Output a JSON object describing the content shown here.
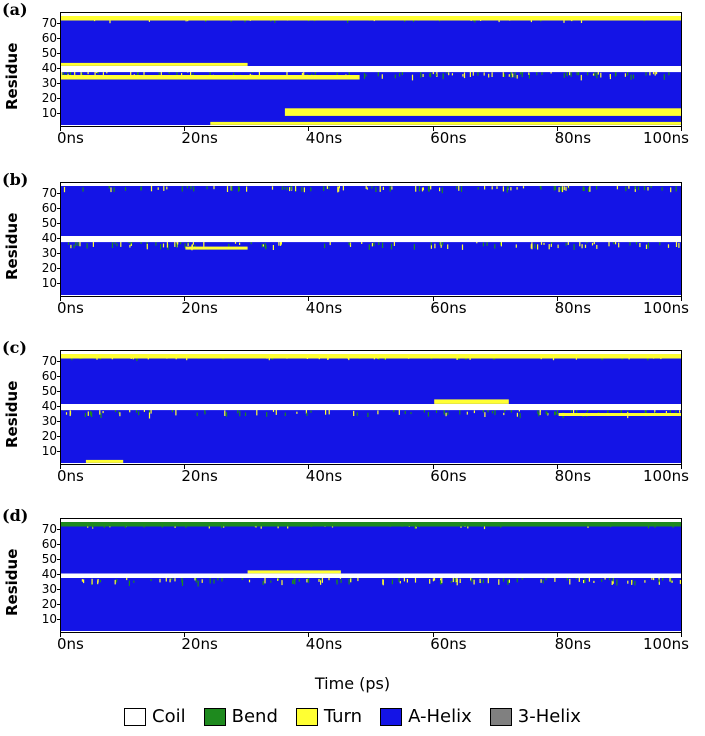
{
  "chart_data": {
    "type": "heatmap",
    "xlabel": "Time (ps)",
    "ylabel": "Residue",
    "x_ticks": [
      "0ns",
      "20ns",
      "40ns",
      "60ns",
      "80ns",
      "100ns"
    ],
    "x_range_ns": [
      0,
      100
    ],
    "y_ticks": [
      10,
      20,
      30,
      40,
      50,
      60,
      70
    ],
    "y_range": [
      1,
      76
    ],
    "legend_placement": "bottom",
    "states": [
      {
        "name": "Coil",
        "color": "#ffffff"
      },
      {
        "name": "Bend",
        "color": "#1e8a1e"
      },
      {
        "name": "Turn",
        "color": "#ffff33"
      },
      {
        "name": "A-Helix",
        "color": "#1414e6"
      },
      {
        "name": "3-Helix",
        "color": "#808080"
      }
    ],
    "panels": [
      {
        "letter": "(a)",
        "bands": [
          {
            "state": "Coil",
            "from_res": 1,
            "to_res": 2,
            "t_start": 0,
            "t_end": 100
          },
          {
            "state": "Turn",
            "from_res": 3,
            "to_res": 4,
            "t_start": 24,
            "t_end": 100
          },
          {
            "state": "Turn",
            "from_res": 9,
            "to_res": 13,
            "t_start": 36,
            "t_end": 100
          },
          {
            "state": "Turn",
            "from_res": 33,
            "to_res": 35,
            "t_start": 0,
            "t_end": 48
          },
          {
            "state": "Coil",
            "from_res": 38,
            "to_res": 41,
            "t_start": 0,
            "t_end": 100
          },
          {
            "state": "Turn",
            "from_res": 42,
            "to_res": 43,
            "t_start": 0,
            "t_end": 30
          },
          {
            "state": "Turn",
            "from_res": 72,
            "to_res": 74,
            "t_start": 0,
            "t_end": 100
          },
          {
            "state": "Coil",
            "from_res": 75,
            "to_res": 76,
            "t_start": 0,
            "t_end": 100
          }
        ]
      },
      {
        "letter": "(b)",
        "bands": [
          {
            "state": "Coil",
            "from_res": 1,
            "to_res": 2,
            "t_start": 0,
            "t_end": 100
          },
          {
            "state": "Turn",
            "from_res": 33,
            "to_res": 34,
            "t_start": 20,
            "t_end": 30
          },
          {
            "state": "Coil",
            "from_res": 38,
            "to_res": 41,
            "t_start": 0,
            "t_end": 100
          },
          {
            "state": "Coil",
            "from_res": 75,
            "to_res": 76,
            "t_start": 0,
            "t_end": 100
          }
        ]
      },
      {
        "letter": "(c)",
        "bands": [
          {
            "state": "Coil",
            "from_res": 1,
            "to_res": 2,
            "t_start": 0,
            "t_end": 100
          },
          {
            "state": "Turn",
            "from_res": 3,
            "to_res": 4,
            "t_start": 4,
            "t_end": 10
          },
          {
            "state": "Turn",
            "from_res": 34,
            "to_res": 35,
            "t_start": 80,
            "t_end": 100
          },
          {
            "state": "Coil",
            "from_res": 38,
            "to_res": 41,
            "t_start": 0,
            "t_end": 100
          },
          {
            "state": "Turn",
            "from_res": 42,
            "to_res": 44,
            "t_start": 60,
            "t_end": 72
          },
          {
            "state": "Turn",
            "from_res": 72,
            "to_res": 74,
            "t_start": 0,
            "t_end": 100
          },
          {
            "state": "Coil",
            "from_res": 75,
            "to_res": 76,
            "t_start": 0,
            "t_end": 100
          }
        ]
      },
      {
        "letter": "(d)",
        "bands": [
          {
            "state": "Coil",
            "from_res": 1,
            "to_res": 2,
            "t_start": 0,
            "t_end": 100
          },
          {
            "state": "Coil",
            "from_res": 38,
            "to_res": 40,
            "t_start": 0,
            "t_end": 100
          },
          {
            "state": "Turn",
            "from_res": 41,
            "to_res": 42,
            "t_start": 30,
            "t_end": 45
          },
          {
            "state": "Bend",
            "from_res": 72,
            "to_res": 74,
            "t_start": 0,
            "t_end": 100
          },
          {
            "state": "Coil",
            "from_res": 75,
            "to_res": 76,
            "t_start": 0,
            "t_end": 100
          }
        ]
      }
    ]
  }
}
